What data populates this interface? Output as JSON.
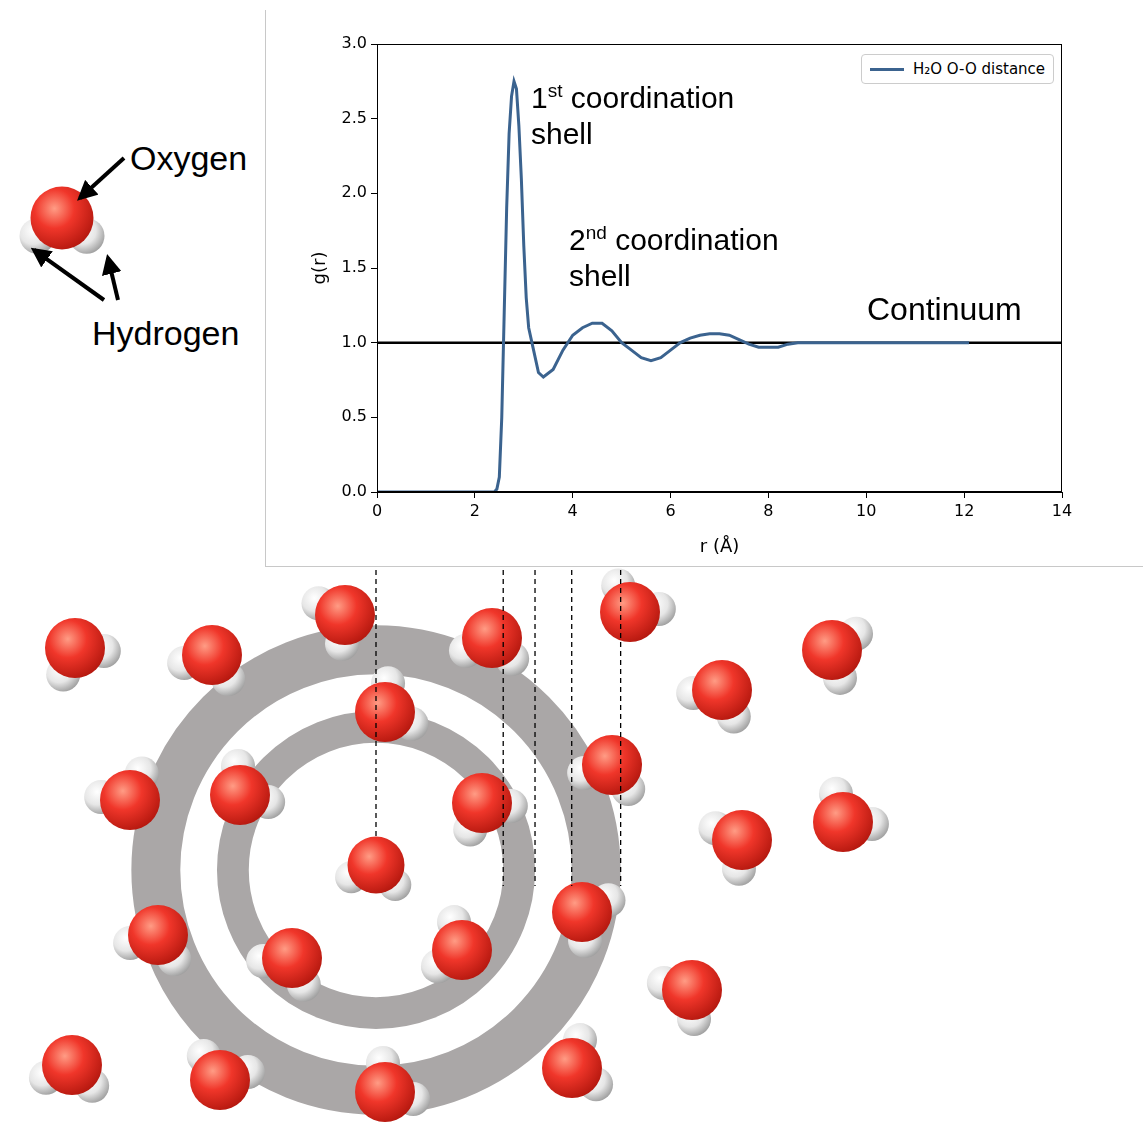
{
  "chart_data": {
    "type": "line",
    "x_label": "r (Å)",
    "y_label": "g(r)",
    "x": [
      0,
      2.0,
      2.4,
      2.45,
      2.5,
      2.55,
      2.6,
      2.65,
      2.7,
      2.75,
      2.8,
      2.85,
      2.9,
      2.95,
      3.0,
      3.05,
      3.1,
      3.2,
      3.3,
      3.4,
      3.6,
      3.8,
      4.0,
      4.2,
      4.4,
      4.6,
      4.8,
      5.0,
      5.2,
      5.4,
      5.6,
      5.8,
      6.0,
      6.2,
      6.4,
      6.6,
      6.8,
      7.0,
      7.2,
      7.4,
      7.6,
      7.8,
      8.0,
      8.2,
      8.4,
      8.6,
      9.0,
      10.0,
      11.0,
      12.1
    ],
    "series": [
      {
        "name": "H₂O O-O distance",
        "color": "#3b638f",
        "values": [
          0,
          0,
          0,
          0.02,
          0.1,
          0.5,
          1.2,
          1.9,
          2.4,
          2.65,
          2.75,
          2.7,
          2.45,
          2.1,
          1.65,
          1.3,
          1.1,
          0.95,
          0.8,
          0.77,
          0.82,
          0.95,
          1.05,
          1.1,
          1.13,
          1.13,
          1.08,
          1.0,
          0.95,
          0.9,
          0.88,
          0.9,
          0.95,
          1.0,
          1.03,
          1.05,
          1.06,
          1.06,
          1.05,
          1.02,
          0.99,
          0.97,
          0.97,
          0.97,
          0.99,
          1.0,
          1.0,
          1.0,
          1.0,
          1.0
        ]
      }
    ],
    "xlim": [
      0,
      14
    ],
    "xticks": [
      0,
      2,
      4,
      6,
      8,
      10,
      12,
      14
    ],
    "ylim": [
      0,
      3
    ],
    "yticks": [
      {
        "value": 0,
        "label": "0.0"
      },
      {
        "value": 0.5,
        "label": "0.5"
      },
      {
        "value": 1,
        "label": "1.0"
      },
      {
        "value": 1.5,
        "label": "1.5"
      },
      {
        "value": 2,
        "label": "2.0"
      },
      {
        "value": 2.5,
        "label": "2.5"
      },
      {
        "value": 3,
        "label": "3.0"
      }
    ],
    "grid": false,
    "legend": "upper right",
    "hline": 1,
    "shell_boundaries": [
      0,
      2.6,
      3.25,
      4.0,
      5.0
    ],
    "annotations": [
      "1st coordination shell",
      "2nd coordination shell",
      "Continuum"
    ]
  },
  "diagram": {
    "oxygen_label": "Oxygen",
    "hydrogen_label": "Hydrogen"
  }
}
